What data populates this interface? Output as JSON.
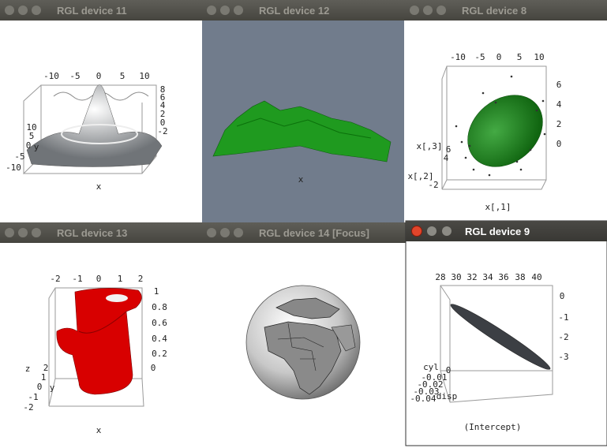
{
  "windows": [
    {
      "title": "RGL device 11",
      "labels": [
        "-10",
        "-5",
        "0",
        "5",
        "10",
        "8",
        "6",
        "4",
        "2",
        "0",
        "-2",
        "10",
        "5",
        "0",
        "y",
        "-5",
        "-10",
        "x"
      ]
    },
    {
      "title": "RGL device 12",
      "labels": [
        "x"
      ]
    },
    {
      "title": "RGL device 8",
      "labels": [
        "-10",
        "-5",
        "0",
        "5",
        "10",
        "6",
        "4",
        "2",
        "0",
        "x[,3]",
        "6",
        "4",
        "x[,2]",
        "-2",
        "x[,1]"
      ]
    },
    {
      "title": "RGL device 13",
      "labels": [
        "-2",
        "-1",
        "0",
        "1",
        "2",
        "1",
        "0.8",
        "0.6",
        "0.4",
        "0.2",
        "0",
        "z",
        "2",
        "1",
        "0",
        "y",
        "-1",
        "-2",
        "x"
      ]
    },
    {
      "title": "RGL device 14 [Focus]",
      "labels": []
    },
    {
      "title": "RGL device 9",
      "labels": [
        "28",
        "30",
        "32",
        "34",
        "36",
        "38",
        "40",
        "0",
        "-1",
        "-2",
        "-3",
        "cyl",
        "0",
        "-0.01",
        "-0.02",
        "-0.03",
        "-0.04",
        "disp",
        "(Intercept)"
      ]
    }
  ]
}
